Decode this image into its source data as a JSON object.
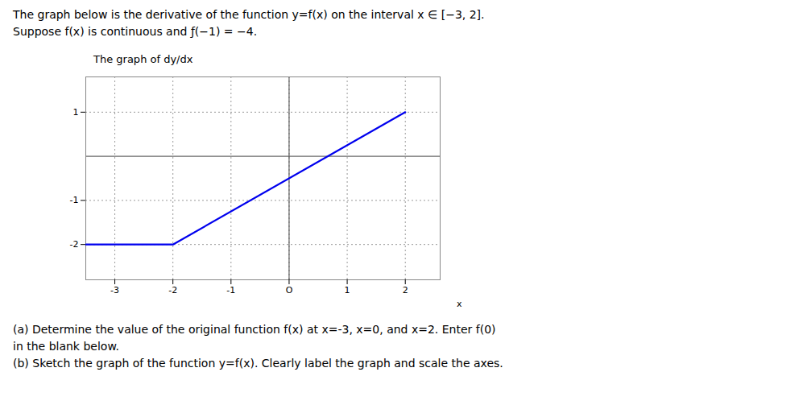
{
  "chart_data": {
    "type": "line",
    "title": "The graph of dy/dx",
    "subtitle": [
      "The graph below is the derivative of the function y=f(x) on the interval x ∈ [−3, 2].",
      "Suppose f(x) is continuous and ƒ(−1) = −4."
    ],
    "annotations": [
      "(a) Determine the value of the original function f(x) at x=-3, x=0, and x=2. Enter f(0)",
      "in the blank below.",
      "(b) Sketch the graph of the function y=f(x). Clearly label the graph and scale the axes."
    ],
    "x_label": "x",
    "x": [
      -3.5,
      -2,
      2
    ],
    "values": [
      -2,
      -2,
      1
    ],
    "color": "#0000EE",
    "xlim": [
      -3.5,
      2.6
    ],
    "ylim": [
      -2.8,
      1.8
    ],
    "xticks": [
      -3,
      -2,
      -1,
      {
        "value": 0,
        "label": "O"
      },
      1,
      2
    ],
    "yticks": [
      -2,
      -1,
      1
    ],
    "grid": true
  }
}
